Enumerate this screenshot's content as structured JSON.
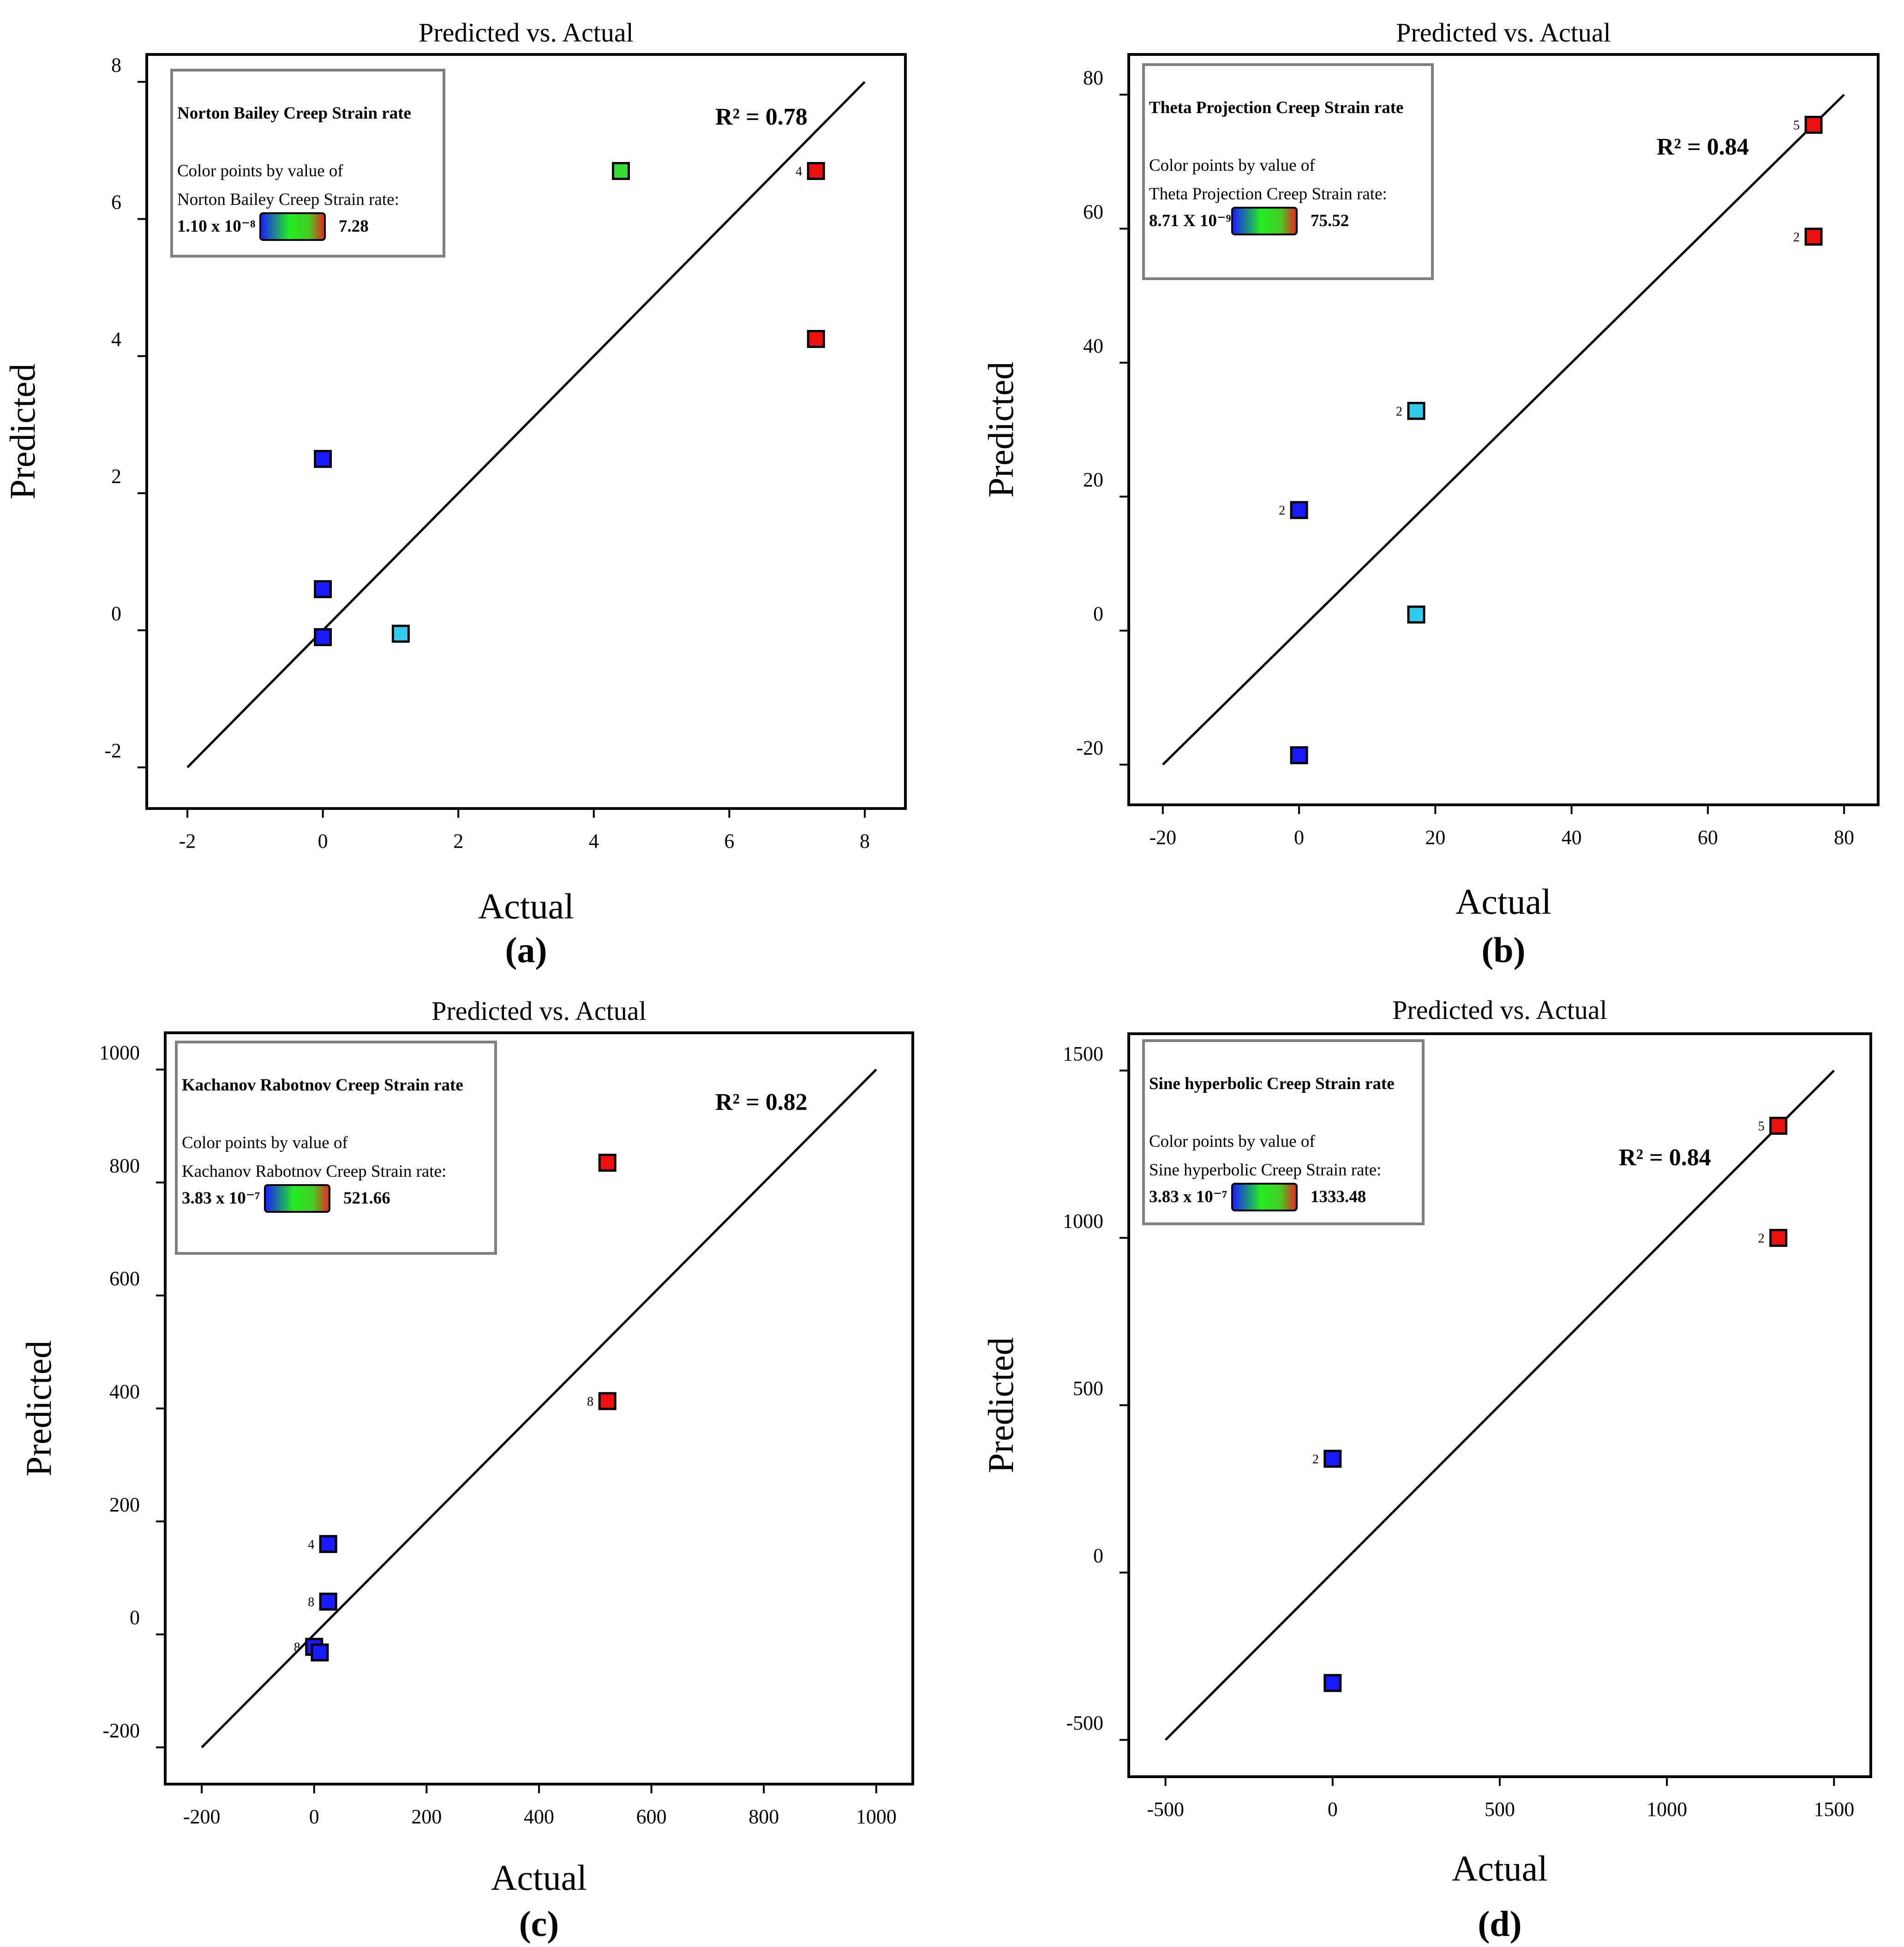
{
  "figure": {
    "panels": [
      "a",
      "b",
      "c",
      "d"
    ]
  },
  "colors": {
    "low": "#1a1aff",
    "low_mid": "#33ccee",
    "mid": "#33dd33",
    "high": "#ee1111",
    "axis": "#000000",
    "legend_border": "#808080"
  },
  "chart_data": [
    {
      "type": "scatter",
      "panel_label": "(a)",
      "title": "Predicted vs. Actual",
      "xlabel": "Actual",
      "ylabel": "Predicted",
      "xlim": [
        -2.6,
        8.6
      ],
      "ylim": [
        -2.6,
        8.4
      ],
      "xticks": [
        -2,
        0,
        2,
        4,
        6,
        8
      ],
      "yticks": [
        -2,
        0,
        2,
        4,
        6,
        8
      ],
      "xtick_labels": [
        "-2",
        "0",
        "2",
        "4",
        "6",
        "8"
      ],
      "ytick_labels": [
        "-2",
        "0",
        "2",
        "4",
        "6",
        "8"
      ],
      "fit_line": [
        [
          -2,
          -2
        ],
        [
          8,
          8
        ]
      ],
      "r2_text": "R² = 0.78",
      "legend": {
        "title": "Norton Bailey Creep Strain rate",
        "line1": "Color points by value of",
        "line2": "Norton Bailey Creep Strain rate:",
        "min_label": "1.10 x 10⁻⁸",
        "max_label": "7.28"
      },
      "points": [
        {
          "x": 0.0,
          "y": -0.1,
          "color": "low",
          "label": ""
        },
        {
          "x": 0.0,
          "y": 0.6,
          "color": "low",
          "label": ""
        },
        {
          "x": 0.0,
          "y": 2.5,
          "color": "low",
          "label": ""
        },
        {
          "x": 1.15,
          "y": -0.05,
          "color": "low_mid",
          "label": ""
        },
        {
          "x": 4.4,
          "y": 6.7,
          "color": "mid",
          "label": ""
        },
        {
          "x": 7.28,
          "y": 6.7,
          "color": "high",
          "label": "4"
        },
        {
          "x": 7.28,
          "y": 4.25,
          "color": "high",
          "label": ""
        }
      ]
    },
    {
      "type": "scatter",
      "panel_label": "(b)",
      "title": "Predicted vs. Actual",
      "xlabel": "Actual",
      "ylabel": "Predicted",
      "xlim": [
        -25,
        85
      ],
      "ylim": [
        -26,
        86
      ],
      "xticks": [
        -20,
        0,
        20,
        40,
        60,
        80
      ],
      "yticks": [
        -20,
        0,
        20,
        40,
        60,
        80
      ],
      "xtick_labels": [
        "-20",
        "0",
        "20",
        "40",
        "60",
        "80"
      ],
      "ytick_labels": [
        "-20",
        "0",
        "20",
        "40",
        "60",
        "80"
      ],
      "fit_line": [
        [
          -20,
          -20
        ],
        [
          80,
          80
        ]
      ],
      "r2_text": "R² = 0.84",
      "legend": {
        "title": "Theta Projection Creep Strain rate",
        "line1": "Color points by value of",
        "line2": "Theta Projection Creep Strain rate:",
        "min_label": "8.71 X 10⁻⁹",
        "max_label": "75.52"
      },
      "points": [
        {
          "x": 0.0,
          "y": 18.0,
          "color": "low",
          "label": "2"
        },
        {
          "x": 0.0,
          "y": -18.6,
          "color": "low",
          "label": ""
        },
        {
          "x": 17.2,
          "y": 32.8,
          "color": "low_mid",
          "label": "2"
        },
        {
          "x": 17.2,
          "y": 2.4,
          "color": "low_mid",
          "label": ""
        },
        {
          "x": 75.52,
          "y": 75.5,
          "color": "high",
          "label": "5"
        },
        {
          "x": 75.52,
          "y": 58.8,
          "color": "high",
          "label": "2"
        }
      ]
    },
    {
      "type": "scatter",
      "panel_label": "(c)",
      "title": "Predicted vs. Actual",
      "xlabel": "Actual",
      "ylabel": "Predicted",
      "xlim": [
        -265,
        1065
      ],
      "ylim": [
        -265,
        1065
      ],
      "xticks": [
        -200,
        0,
        200,
        400,
        600,
        800,
        1000
      ],
      "yticks": [
        -200,
        0,
        200,
        400,
        600,
        800,
        1000
      ],
      "xtick_labels": [
        "-200",
        "0",
        "200",
        "400",
        "600",
        "800",
        "1000"
      ],
      "ytick_labels": [
        "-200",
        "0",
        "200",
        "400",
        "600",
        "800",
        "1000"
      ],
      "fit_line": [
        [
          -200,
          -200
        ],
        [
          1000,
          1000
        ]
      ],
      "r2_text": "R² = 0.82",
      "legend": {
        "title": "Kachanov Rabotnov Creep Strain rate",
        "line1": "Color points by value of",
        "line2": "Kachanov Rabotnov Creep Strain rate:",
        "min_label": "3.83 x 10⁻⁷",
        "max_label": "521.66"
      },
      "points": [
        {
          "x": 25,
          "y": 160,
          "color": "low",
          "label": "4"
        },
        {
          "x": 25,
          "y": 58,
          "color": "low",
          "label": "8"
        },
        {
          "x": 0,
          "y": -22,
          "color": "low",
          "label": "8"
        },
        {
          "x": 10,
          "y": -32,
          "color": "low",
          "label": ""
        },
        {
          "x": 521.66,
          "y": 835,
          "color": "high",
          "label": ""
        },
        {
          "x": 521.66,
          "y": 413,
          "color": "high",
          "label": "8"
        }
      ]
    },
    {
      "type": "scatter",
      "panel_label": "(d)",
      "title": "Predicted vs. Actual",
      "xlabel": "Actual",
      "ylabel": "Predicted",
      "xlim": [
        -610,
        1610
      ],
      "ylim": [
        -610,
        1610
      ],
      "xticks": [
        -500,
        0,
        500,
        1000,
        1500
      ],
      "yticks": [
        -500,
        0,
        500,
        1000,
        1500
      ],
      "xtick_labels": [
        "-500",
        "0",
        "500",
        "1000",
        "1500"
      ],
      "ytick_labels": [
        "-500",
        "0",
        "500",
        "1000",
        "1500"
      ],
      "fit_line": [
        [
          -500,
          -500
        ],
        [
          1500,
          1500
        ]
      ],
      "r2_text": "R² = 0.84",
      "legend": {
        "title": "Sine hyperbolic Creep Strain rate",
        "line1": "Color points by value of",
        "line2": "Sine hyperbolic Creep Strain rate:",
        "min_label": "3.83 x 10⁻⁷",
        "max_label": "1333.48"
      },
      "points": [
        {
          "x": 0,
          "y": 340,
          "color": "low",
          "label": "2"
        },
        {
          "x": 0,
          "y": -330,
          "color": "low",
          "label": ""
        },
        {
          "x": 1333.48,
          "y": 1335,
          "color": "high",
          "label": "5"
        },
        {
          "x": 1333.48,
          "y": 1000,
          "color": "high",
          "label": "2"
        }
      ]
    }
  ]
}
